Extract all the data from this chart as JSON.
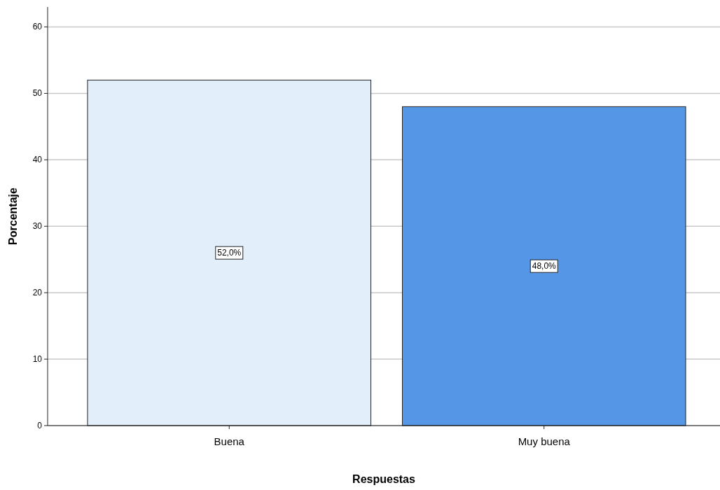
{
  "chart_data": {
    "type": "bar",
    "xlabel": "Respuestas",
    "ylabel": "Porcentaje",
    "categories": [
      "Buena",
      "Muy buena"
    ],
    "values": [
      52,
      48
    ],
    "colors": [
      "#e2eefa",
      "#5596e6"
    ],
    "value_labels": [
      "52,0%",
      "48,0%"
    ],
    "ylim": [
      0,
      63
    ],
    "yticks": [
      0,
      10,
      20,
      30,
      40,
      50,
      60
    ],
    "grid": "y"
  }
}
